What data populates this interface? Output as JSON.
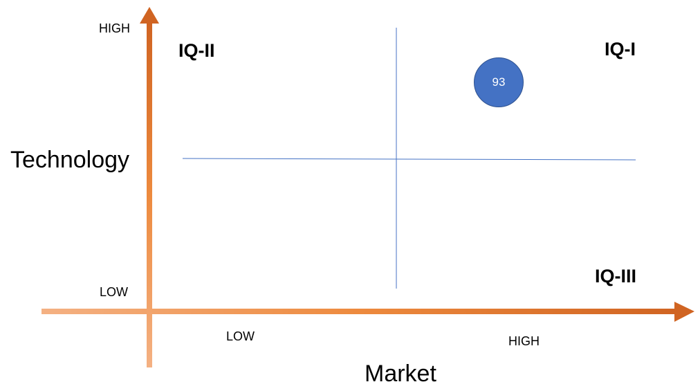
{
  "diagram": {
    "y_axis": {
      "title": "Technology",
      "high_label": "HIGH",
      "low_label": "LOW"
    },
    "x_axis": {
      "title": "Market",
      "low_label": "LOW",
      "high_label": "HIGH"
    },
    "quadrants": {
      "top_left": "IQ-II",
      "top_right": "IQ-I",
      "bottom_right": "IQ-III"
    },
    "bubble": {
      "label": "93",
      "color": "#4472c4"
    },
    "colors": {
      "axis_light": "#f4b183",
      "axis_dark": "#d06422",
      "divider": "#4472c4"
    }
  }
}
